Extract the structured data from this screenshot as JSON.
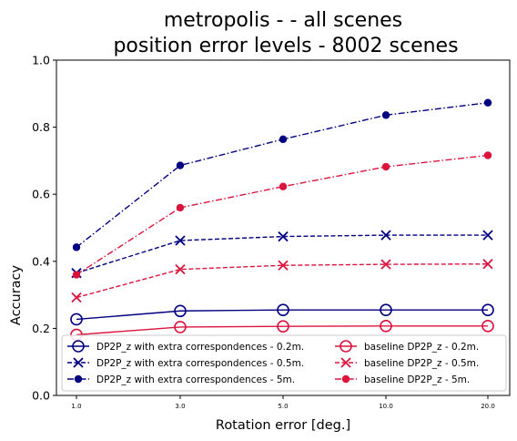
{
  "chart_data": {
    "type": "line",
    "title_line1": "metropolis -  - all scenes",
    "title_line2": "position error levels - 8002 scenes",
    "xlabel": "Rotation error [deg.]",
    "ylabel": "Accuracy",
    "ylim": [
      0.0,
      1.0
    ],
    "yticks": [
      "0.0",
      "0.2",
      "0.4",
      "0.6",
      "0.8",
      "1.0"
    ],
    "categories": [
      "1.0",
      "3.0",
      "5.0",
      "10.0",
      "20.0"
    ],
    "grid": false,
    "legend_placement": "lower-center",
    "colors": {
      "navy": "#000080",
      "crimson": "#dc143c"
    },
    "series": [
      {
        "name": "DP2P_z with extra correspondences - 0.2m.",
        "color": "#000080",
        "marker": "circle-open",
        "linestyle": "solid",
        "values": [
          0.227,
          0.252,
          0.255,
          0.255,
          0.255
        ]
      },
      {
        "name": "DP2P_z with extra correspondences - 0.5m.",
        "color": "#000080",
        "marker": "x",
        "linestyle": "dashed",
        "values": [
          0.365,
          0.462,
          0.474,
          0.478,
          0.478
        ]
      },
      {
        "name": "DP2P_z with extra correspondences - 5m.",
        "color": "#000080",
        "marker": "dot",
        "linestyle": "dashdot",
        "values": [
          0.442,
          0.686,
          0.764,
          0.836,
          0.873
        ]
      },
      {
        "name": "baseline DP2P_z - 0.2m.",
        "color": "#dc143c",
        "marker": "circle-open",
        "linestyle": "solid",
        "values": [
          0.181,
          0.204,
          0.206,
          0.207,
          0.207
        ]
      },
      {
        "name": "baseline DP2P_z - 0.5m.",
        "color": "#dc143c",
        "marker": "x",
        "linestyle": "dashed",
        "values": [
          0.292,
          0.376,
          0.388,
          0.391,
          0.392
        ]
      },
      {
        "name": "baseline DP2P_z - 5m.",
        "color": "#dc143c",
        "marker": "dot",
        "linestyle": "dashdot",
        "values": [
          0.36,
          0.56,
          0.623,
          0.682,
          0.716
        ]
      }
    ]
  }
}
